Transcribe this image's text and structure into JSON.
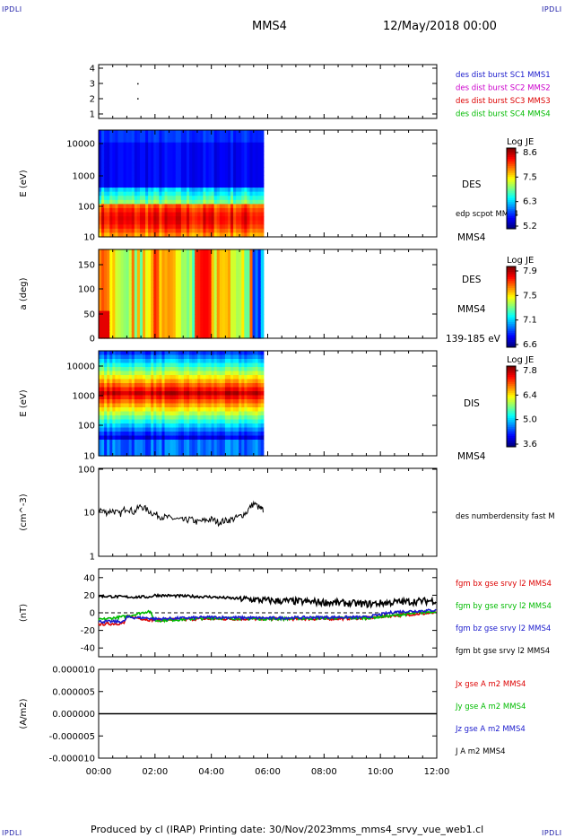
{
  "header": {
    "corner_left": "IPDLI",
    "corner_right": "IPDLI",
    "corner_bottom_left": "IPDLI",
    "corner_bottom_right": "IPDLI",
    "spacecraft": "MMS4",
    "datetime": "12/May/2018 00:00"
  },
  "footer": {
    "produced": "Produced by cl (IRAP)",
    "printing": "Printing date: 30/Nov/2023",
    "file": "mms_mms4_srvy_vue_web1.cl"
  },
  "time_axis": [
    "00:00",
    "02:00",
    "04:00",
    "06:00",
    "08:00",
    "10:00",
    "12:00"
  ],
  "colors": {
    "blue": "#1a1acc",
    "magenta": "#cc00cc",
    "red": "#dd0000",
    "green": "#00bb00",
    "black": "#000000"
  },
  "chart_data": [
    {
      "type": "scatter",
      "name": "burst-panel",
      "yticks": [
        "4",
        "3",
        "2",
        "1"
      ],
      "legend": [
        {
          "text": "des dist burst SC1 MMS1",
          "color": "#1a1acc"
        },
        {
          "text": "des dist burst SC2 MMS2",
          "color": "#cc00cc"
        },
        {
          "text": "des dist burst SC3 MMS3",
          "color": "#dd0000"
        },
        {
          "text": "des dist burst SC4 MMS4",
          "color": "#00bb00"
        }
      ],
      "points": [
        {
          "t": 1.37,
          "y": 3
        },
        {
          "t": 1.37,
          "y": 2
        }
      ]
    },
    {
      "type": "heatmap",
      "name": "des-energy",
      "ylabel": "E (eV)",
      "yticks": [
        "10000",
        "1000",
        "100",
        "10"
      ],
      "ylim": [
        10,
        30000
      ],
      "data_end_hour": 5.85,
      "label": "DES",
      "label2": "edp scpot MMS4",
      "label3": "MMS4",
      "colorbar": {
        "title": "Log JE",
        "ticks": [
          "8.6",
          "7.5",
          "6.3",
          "5.2"
        ],
        "min": 5.2,
        "max": 8.6
      }
    },
    {
      "type": "heatmap",
      "name": "des-pitch",
      "ylabel": "a (deg)",
      "yticks": [
        "150",
        "100",
        "50",
        "0"
      ],
      "ylim": [
        0,
        180
      ],
      "data_end_hour": 5.85,
      "label": "DES",
      "label2": "MMS4",
      "label3": "139-185 eV",
      "colorbar": {
        "title": "Log JE",
        "ticks": [
          "7.9",
          "7.5",
          "7.1",
          "6.6"
        ],
        "min": 6.6,
        "max": 7.9
      }
    },
    {
      "type": "heatmap",
      "name": "dis-energy",
      "ylabel": "E (eV)",
      "yticks": [
        "10000",
        "1000",
        "100",
        "10"
      ],
      "ylim": [
        10,
        30000
      ],
      "data_end_hour": 5.85,
      "label": "DIS",
      "label2": "MMS4",
      "colorbar": {
        "title": "Log JE",
        "ticks": [
          "7.8",
          "6.4",
          "5.0",
          "3.6"
        ],
        "min": 3.6,
        "max": 7.8
      }
    },
    {
      "type": "line",
      "name": "density",
      "ylabel": "(cm^-3)",
      "yticks": [
        "100",
        "10",
        "1"
      ],
      "ylim": [
        1,
        100
      ],
      "legend": [
        {
          "text": "des numberdensity fast M",
          "color": "#000000"
        }
      ],
      "series": [
        {
          "name": "des numberdensity fast M",
          "color": "#000000",
          "x": [
            0.0,
            0.25,
            0.5,
            0.75,
            1.0,
            1.25,
            1.5,
            1.75,
            2.0,
            2.25,
            2.5,
            2.75,
            3.0,
            3.25,
            3.5,
            3.75,
            4.0,
            4.25,
            4.5,
            4.75,
            5.0,
            5.25,
            5.5,
            5.75,
            5.85
          ],
          "values": [
            12,
            10,
            11,
            9,
            13,
            10,
            14,
            11,
            9,
            8,
            7.5,
            7,
            6.5,
            7,
            6,
            6.5,
            7,
            6,
            6.5,
            7,
            8,
            10,
            16,
            12,
            11
          ]
        }
      ]
    },
    {
      "type": "line",
      "name": "magnetic-field",
      "ylabel": "(nT)",
      "yticks": [
        "40",
        "20",
        "0",
        "-20",
        "-40"
      ],
      "ylim": [
        -50,
        50
      ],
      "legend": [
        {
          "text": "fgm bx gse srvy l2 MMS4",
          "color": "#dd0000"
        },
        {
          "text": "fgm by gse srvy l2 MMS4",
          "color": "#00bb00"
        },
        {
          "text": "fgm bz gse srvy l2 MMS4",
          "color": "#1a1acc"
        },
        {
          "text": "fgm bt gse srvy l2 MMS4",
          "color": "#000000"
        }
      ],
      "series": [
        {
          "name": "fgm bx gse srvy l2 MMS4",
          "color": "#dd0000",
          "x": [
            0,
            0.9,
            1.0,
            1.8,
            2.0,
            4.0,
            6.0,
            8.0,
            9.5,
            10.5,
            12.0
          ],
          "values": [
            -13,
            -12,
            -4,
            -8,
            -8,
            -7,
            -7,
            -7,
            -6,
            -3,
            0
          ]
        },
        {
          "name": "fgm by gse srvy l2 MMS4",
          "color": "#00bb00",
          "x": [
            0,
            1.0,
            1.8,
            2.0,
            4.0,
            6.0,
            8.0,
            9.5,
            10.5,
            12.0
          ],
          "values": [
            -8,
            -4,
            2,
            -9,
            -6,
            -7,
            -6,
            -6,
            -3,
            2
          ]
        },
        {
          "name": "fgm bz gse srvy l2 MMS4",
          "color": "#1a1acc",
          "x": [
            0,
            0.9,
            1.0,
            1.8,
            2.0,
            4.0,
            6.0,
            8.0,
            9.5,
            10.5,
            12.0
          ],
          "values": [
            -10,
            -10,
            -5,
            -6,
            -7,
            -5,
            -6,
            -5,
            -5,
            1,
            3
          ]
        },
        {
          "name": "fgm bt gse srvy l2 MMS4",
          "color": "#000000",
          "x": [
            0,
            1.0,
            1.8,
            2.0,
            3.0,
            4.0,
            6.0,
            8.0,
            9.5,
            10.5,
            12.0
          ],
          "values": [
            19,
            18,
            18,
            20,
            19,
            18,
            14,
            12,
            10,
            12,
            14
          ]
        }
      ]
    },
    {
      "type": "line",
      "name": "current-density",
      "ylabel": "(A/m2)",
      "yticks": [
        "0.000010",
        "0.000005",
        "0.000000",
        "-0.000005",
        "-0.000010"
      ],
      "ylim": [
        -1e-05,
        1e-05
      ],
      "legend": [
        {
          "text": "Jx gse A m2 MMS4",
          "color": "#dd0000"
        },
        {
          "text": "Jy gse A m2 MMS4",
          "color": "#00bb00"
        },
        {
          "text": "Jz gse A m2 MMS4",
          "color": "#1a1acc"
        },
        {
          "text": "J A m2 MMS4",
          "color": "#000000"
        }
      ],
      "series": [
        {
          "name": "J A m2 MMS4",
          "color": "#000000",
          "x": [
            0,
            12
          ],
          "values": [
            0,
            0
          ]
        }
      ]
    }
  ]
}
